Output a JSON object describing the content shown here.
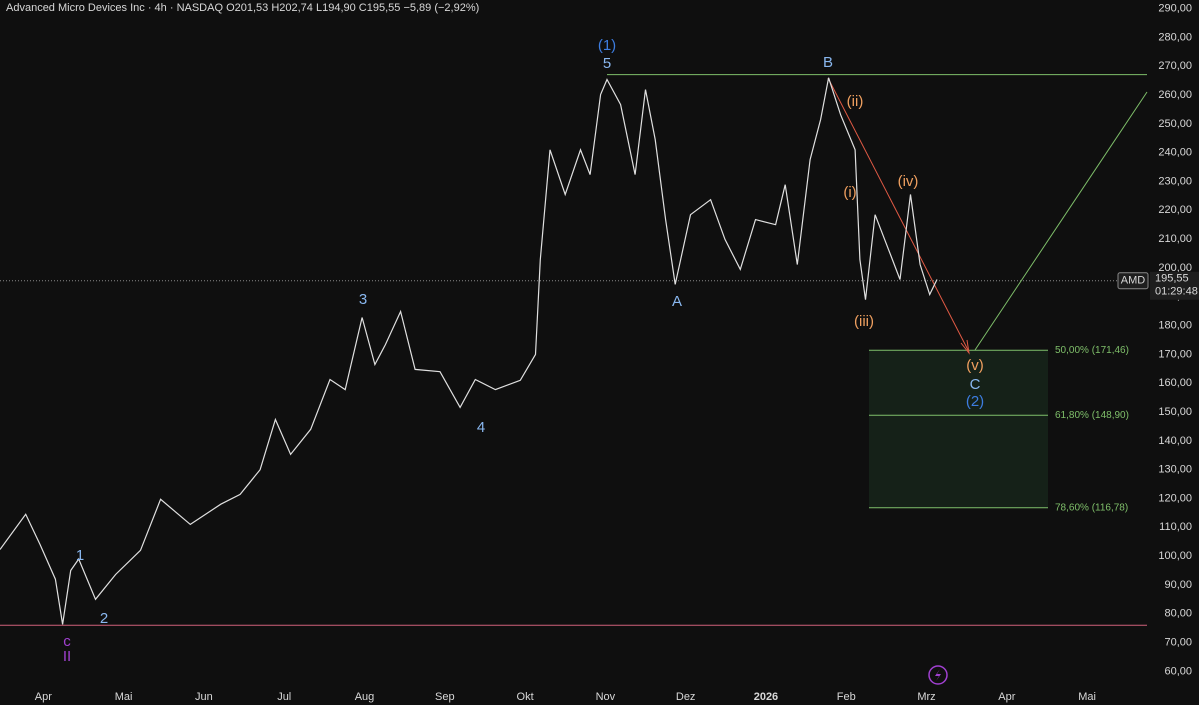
{
  "chart_data": {
    "type": "line",
    "title": "Advanced Micro Devices Inc · 4h · NASDAQ  O201,53  H202,74  L194,90  C195,55  −5,89 (−2,92%)",
    "symbol": "AMD",
    "last_price": {
      "value": 195.55,
      "label": "195,55"
    },
    "countdown": "01:29:48",
    "series": [
      {
        "name": "AMD",
        "color": "#e0e0e0",
        "x": [
          -0.54,
          -0.22,
          -0.04,
          0.15,
          0.24,
          0.34,
          0.44,
          0.65,
          0.9,
          1.21,
          1.46,
          1.83,
          2.21,
          2.45,
          2.7,
          2.89,
          3.08,
          3.33,
          3.57,
          3.76,
          3.97,
          4.13,
          4.26,
          4.45,
          4.63,
          4.94,
          5.19,
          5.38,
          5.63,
          5.94,
          6.13,
          6.19,
          6.31,
          6.5,
          6.69,
          6.81,
          6.94,
          7.02,
          7.19,
          7.37,
          7.5,
          7.62,
          7.75,
          7.87,
          8.06,
          8.31,
          8.49,
          8.68,
          8.87,
          9.12,
          9.24,
          9.39,
          9.55,
          9.68,
          9.78,
          9.93,
          10.11,
          10.17,
          10.24,
          10.36,
          10.55,
          10.67,
          10.8,
          10.92,
          11.04,
          11.13
        ],
        "values": [
          102.3,
          114.5,
          104,
          92,
          76.3,
          95,
          99,
          85,
          93.6,
          102,
          119.7,
          111,
          118,
          121.4,
          130,
          147.4,
          135.3,
          144,
          161.3,
          157.8,
          182.8,
          166.5,
          173.4,
          184.9,
          164.8,
          164,
          151.6,
          161.3,
          157.8,
          161,
          170,
          202.9,
          241,
          225.5,
          241,
          232.4,
          260.2,
          265.4,
          256.7,
          232.4,
          261.9,
          244.6,
          216.8,
          194.3,
          218.5,
          223.7,
          209.9,
          199.5,
          216.8,
          215,
          228.9,
          201.2,
          237.6,
          251.5,
          266,
          253.2,
          241,
          202.9,
          189,
          218.5,
          204.7,
          196,
          225.5,
          201.2,
          190.8,
          196
        ]
      }
    ],
    "xlim": [
      -0.54,
      13.31
    ],
    "xticks": [
      {
        "value": 0,
        "label": "Apr"
      },
      {
        "value": 1,
        "label": "Mai"
      },
      {
        "value": 2,
        "label": "Jun"
      },
      {
        "value": 3,
        "label": "Jul"
      },
      {
        "value": 4,
        "label": "Aug"
      },
      {
        "value": 5,
        "label": "Sep"
      },
      {
        "value": 6,
        "label": "Okt"
      },
      {
        "value": 7,
        "label": "Nov"
      },
      {
        "value": 8,
        "label": "Dez"
      },
      {
        "value": 9,
        "label": "2026"
      },
      {
        "value": 10,
        "label": "Feb"
      },
      {
        "value": 11,
        "label": "Mrz"
      },
      {
        "value": 12,
        "label": "Apr"
      },
      {
        "value": 13,
        "label": "Mai"
      }
    ],
    "ylim": [
      57,
      293
    ],
    "yticks": [
      {
        "value": 60,
        "label": "60,00"
      },
      {
        "value": 70,
        "label": "70,00"
      },
      {
        "value": 80,
        "label": "80,00"
      },
      {
        "value": 90,
        "label": "90,00"
      },
      {
        "value": 100,
        "label": "100,00"
      },
      {
        "value": 110,
        "label": "110,00"
      },
      {
        "value": 120,
        "label": "120,00"
      },
      {
        "value": 130,
        "label": "130,00"
      },
      {
        "value": 140,
        "label": "140,00"
      },
      {
        "value": 150,
        "label": "150,00"
      },
      {
        "value": 160,
        "label": "160,00"
      },
      {
        "value": 170,
        "label": "170,00"
      },
      {
        "value": 180,
        "label": "180,00"
      },
      {
        "value": 190,
        "label": "190,00"
      },
      {
        "value": 200,
        "label": "200,00"
      },
      {
        "value": 210,
        "label": "210,00"
      },
      {
        "value": 220,
        "label": "220,00"
      },
      {
        "value": 230,
        "label": "230,00"
      },
      {
        "value": 240,
        "label": "240,00"
      },
      {
        "value": 250,
        "label": "250,00"
      },
      {
        "value": 260,
        "label": "260,00"
      },
      {
        "value": 270,
        "label": "270,00"
      },
      {
        "value": 280,
        "label": "280,00"
      },
      {
        "value": 290,
        "label": "290,00"
      }
    ],
    "fib_levels": [
      {
        "value": 171.46,
        "label": "50,00% (171,46)"
      },
      {
        "value": 148.9,
        "label": "61,80% (148,90)"
      },
      {
        "value": 116.78,
        "label": "78,60% (116,78)"
      }
    ],
    "fib_color": "#7fbf6a",
    "resistance": {
      "value": 267.1,
      "color": "#7fbf6a"
    },
    "support": {
      "value": 76,
      "color": "#d0607a"
    },
    "wave_labels": [
      {
        "text": "(1)",
        "color": "#3d7de0"
      },
      {
        "text": "5",
        "color": "#8ab8f0"
      },
      {
        "text": "B",
        "color": "#8ab8f0"
      },
      {
        "text": "A",
        "color": "#8ab8f0"
      },
      {
        "text": "3",
        "color": "#8ab8f0"
      },
      {
        "text": "4",
        "color": "#8ab8f0"
      },
      {
        "text": "1",
        "color": "#8ab8f0"
      },
      {
        "text": "2",
        "color": "#8ab8f0"
      },
      {
        "text": "c",
        "color": "#a040d0"
      },
      {
        "text": "II",
        "color": "#a040d0"
      },
      {
        "text": "(ii)",
        "color": "#f0a060"
      },
      {
        "text": "(i)",
        "color": "#f0a060"
      },
      {
        "text": "(iv)",
        "color": "#f0a060"
      },
      {
        "text": "(iii)",
        "color": "#f0a060"
      },
      {
        "text": "(v)",
        "color": "#f0a060"
      },
      {
        "text": "C",
        "color": "#8ab8f0"
      },
      {
        "text": "(2)",
        "color": "#3d7de0"
      }
    ]
  }
}
